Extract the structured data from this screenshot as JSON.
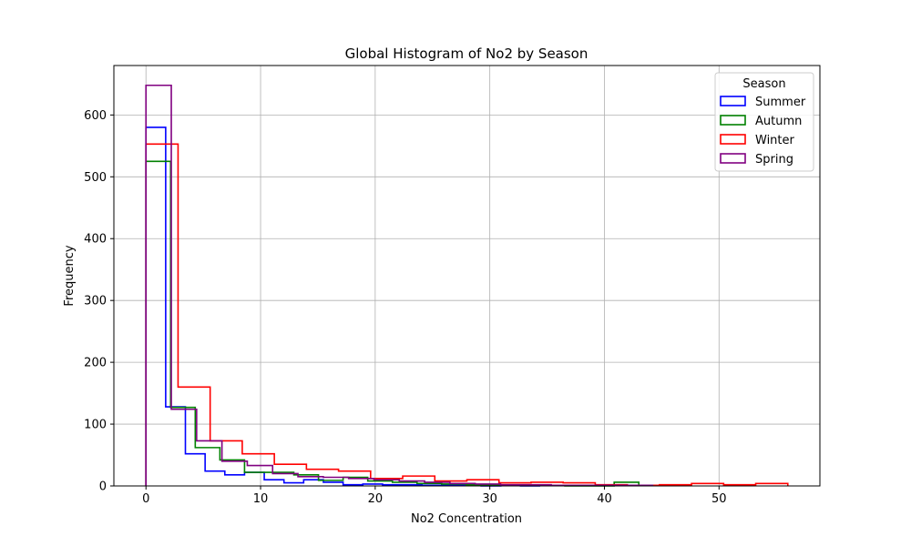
{
  "chart_data": {
    "type": "histogram",
    "title": "Global Histogram of No2 by Season",
    "xlabel": "No2 Concentration",
    "ylabel": "Frequency",
    "xlim": [
      -2.8,
      58.8
    ],
    "ylim": [
      0,
      680
    ],
    "xticks": [
      0,
      10,
      20,
      30,
      40,
      50
    ],
    "yticks": [
      0,
      100,
      200,
      300,
      400,
      500,
      600
    ],
    "grid": true,
    "legend": {
      "title": "Season",
      "position": "top-right"
    },
    "series": [
      {
        "name": "Summer",
        "color": "#0000ff",
        "edges": [
          0,
          1.72,
          3.44,
          5.16,
          6.88,
          8.6,
          10.32,
          12.04,
          13.76,
          15.48,
          17.2,
          18.92,
          20.64,
          22.36,
          24.08,
          25.8,
          27.52,
          29.24,
          30.96,
          32.68,
          34.4
        ],
        "counts": [
          580,
          128,
          52,
          24,
          18,
          22,
          10,
          5,
          10,
          6,
          2,
          3,
          2,
          2,
          1,
          1,
          2,
          0,
          1,
          0
        ]
      },
      {
        "name": "Autumn",
        "color": "#008000",
        "edges": [
          0,
          2.15,
          4.3,
          6.45,
          8.6,
          10.75,
          12.9,
          15.05,
          17.2,
          19.35,
          21.5,
          23.65,
          25.8,
          27.95,
          30.1,
          32.25,
          34.4,
          36.55,
          38.7,
          40.85,
          43.0
        ],
        "counts": [
          525,
          127,
          62,
          42,
          22,
          22,
          18,
          9,
          14,
          8,
          6,
          4,
          3,
          2,
          1,
          1,
          1,
          0,
          0,
          6
        ]
      },
      {
        "name": "Winter",
        "color": "#ff0000",
        "edges": [
          0,
          2.8,
          5.6,
          8.4,
          11.2,
          14.0,
          16.8,
          19.6,
          22.4,
          25.2,
          28.0,
          30.8,
          33.6,
          36.4,
          39.2,
          42.0,
          44.8,
          47.6,
          50.4,
          53.2,
          56.0
        ],
        "counts": [
          553,
          160,
          73,
          52,
          35,
          27,
          24,
          12,
          16,
          8,
          10,
          5,
          6,
          5,
          2,
          1,
          2,
          4,
          2,
          4
        ]
      },
      {
        "name": "Spring",
        "color": "#800080",
        "edges": [
          0,
          2.21,
          4.42,
          6.63,
          8.84,
          11.05,
          13.26,
          15.47,
          17.68,
          19.89,
          22.1,
          24.31,
          26.52,
          28.73,
          30.94,
          33.15,
          35.36,
          37.57,
          39.78,
          41.99,
          44.2
        ],
        "counts": [
          648,
          124,
          73,
          40,
          33,
          20,
          15,
          14,
          12,
          10,
          8,
          6,
          4,
          3,
          2,
          2,
          1,
          1,
          1,
          1
        ]
      }
    ]
  }
}
